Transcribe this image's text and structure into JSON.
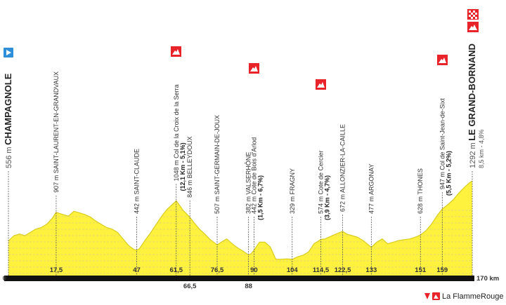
{
  "chart_data": {
    "type": "profile",
    "x_unit": "km",
    "xlim": [
      0,
      170
    ],
    "ylim": [
      130,
      1310
    ],
    "xticks": [
      0,
      {
        "value": 17.5,
        "label": "17,5"
      },
      47,
      {
        "value": 61.5,
        "label": "61,5"
      },
      {
        "value": 66.5,
        "label": "66,5"
      },
      {
        "value": 76.5,
        "label": "76,5"
      },
      88,
      90,
      104,
      {
        "value": 114.5,
        "label": "114,5"
      },
      {
        "value": 122.5,
        "label": "122,5"
      },
      133,
      151,
      159,
      {
        "value": 170,
        "label": "170 km"
      }
    ],
    "color": "#fff23f",
    "profile": {
      "x": [
        0,
        2,
        4,
        6,
        8,
        10,
        12,
        14,
        16,
        17.5,
        20,
        22,
        24,
        26,
        28,
        30,
        32,
        34,
        36,
        38,
        40,
        42,
        44,
        46,
        47,
        48,
        50,
        52,
        54,
        56,
        58,
        60,
        61.5,
        63,
        64,
        66.5,
        68,
        70,
        72,
        74,
        76.5,
        78,
        80,
        82,
        84,
        86,
        88,
        89,
        90,
        92,
        94,
        96,
        98,
        100,
        102,
        104,
        106,
        108,
        110,
        112,
        114.5,
        116,
        118,
        120,
        122.5,
        124,
        126,
        128,
        130,
        133,
        135,
        137,
        139,
        141,
        143,
        145,
        147,
        149,
        151,
        153,
        155,
        157,
        159,
        161,
        163,
        165,
        167,
        169,
        170
      ],
      "elevation": [
        556,
        620,
        640,
        620,
        660,
        700,
        720,
        760,
        830,
        907,
        880,
        860,
        920,
        900,
        880,
        850,
        800,
        760,
        720,
        700,
        660,
        580,
        500,
        450,
        442,
        460,
        560,
        650,
        750,
        850,
        940,
        1000,
        1048,
        980,
        930,
        846,
        780,
        700,
        640,
        570,
        507,
        540,
        580,
        520,
        470,
        430,
        382,
        400,
        442,
        540,
        540,
        480,
        330,
        330,
        335,
        329,
        360,
        380,
        420,
        520,
        574,
        580,
        610,
        640,
        672,
        640,
        620,
        600,
        560,
        477,
        540,
        580,
        520,
        540,
        560,
        570,
        580,
        600,
        628,
        680,
        760,
        860,
        947,
        1000,
        1060,
        1140,
        1210,
        1270,
        1292
      ]
    },
    "waypoints": [
      {
        "km": 0,
        "elevation": {
          "value": 556,
          "label": "556 m"
        },
        "name": "CHAMPAGNOLE"
      },
      {
        "km": 17.5,
        "elevation": {
          "value": 907,
          "label": "907 m"
        },
        "name": "SAINT-LAURENT-EN-GRANDVAUX"
      },
      {
        "km": 47,
        "elevation": {
          "value": 442,
          "label": "442 m"
        },
        "name": "SAINT-CLAUDE"
      },
      {
        "km": 61.5,
        "elevation": {
          "value": 1048,
          "label": "1048 m"
        },
        "name": "Col de la Croix de la Serra",
        "climb": "(12,1 Km - 5,1%)"
      },
      {
        "km": 66.5,
        "elevation": {
          "value": 846,
          "label": "846 m"
        },
        "name": "BELLEYDOUX"
      },
      {
        "km": 76.5,
        "elevation": {
          "value": 507,
          "label": "507 m"
        },
        "name": "SAINT-GERMAIN-DE-JOUX"
      },
      {
        "km": 88,
        "elevation": {
          "value": 382,
          "label": "382 m"
        },
        "name": "VALSERHÔNE"
      },
      {
        "km": 90,
        "elevation": {
          "value": 442,
          "label": "442 m"
        },
        "name": "Cote de Bois d'Arlod",
        "climb": "(1,5 Km - 6,7%)"
      },
      {
        "km": 104,
        "elevation": {
          "value": 329,
          "label": "329 m"
        },
        "name": "FRAGNY"
      },
      {
        "km": 114.5,
        "elevation": {
          "value": 574,
          "label": "574 m"
        },
        "name": "Cote de Cercier",
        "climb": "(3,9 Km - 4,7%)"
      },
      {
        "km": 122.5,
        "elevation": {
          "value": 672,
          "label": "672 m"
        },
        "name": "ALLONZIER-LA-CAILLE"
      },
      {
        "km": 133,
        "elevation": {
          "value": 477,
          "label": "477 m"
        },
        "name": "ARGONAY"
      },
      {
        "km": 151,
        "elevation": {
          "value": 628,
          "label": "628 m"
        },
        "name": "THONES"
      },
      {
        "km": 159,
        "elevation": {
          "value": 947,
          "label": "947 m"
        },
        "name": "Col de Saint-Jean-de-Sixt",
        "climb": "(5,5 Km - 5,2%)"
      },
      {
        "km": 170,
        "elevation": {
          "value": 1292,
          "label": "1292 m"
        },
        "name": "LE GRAND-BORNAND",
        "climb": "8,5 km - 4,8%"
      }
    ],
    "logo": "La FlammeRouge"
  }
}
